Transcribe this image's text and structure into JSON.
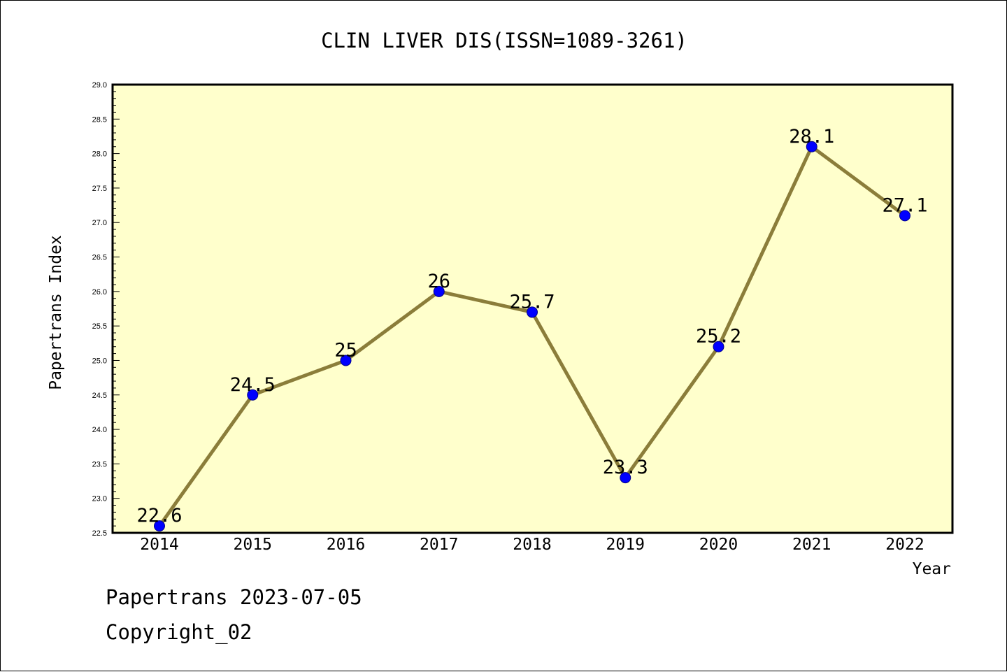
{
  "chart_data": {
    "type": "line",
    "title": "CLIN LIVER DIS(ISSN=1089-3261)",
    "xlabel": "Year",
    "ylabel": "Papertrans Index",
    "categories": [
      "2014",
      "2015",
      "2016",
      "2017",
      "2018",
      "2019",
      "2020",
      "2021",
      "2022"
    ],
    "series": [
      {
        "values": [
          22.6,
          24.5,
          25.0,
          26.0,
          25.7,
          23.3,
          25.2,
          28.1,
          27.1
        ],
        "data_labels": [
          "22.6",
          "24.5",
          "25",
          "26",
          "25.7",
          "23.3",
          "25.2",
          "28.1",
          "27.1"
        ]
      }
    ],
    "ylim": [
      22.5,
      29.0
    ],
    "yticks": [
      "22.5",
      "23.0",
      "23.5",
      "24.0",
      "24.5",
      "25.0",
      "25.5",
      "26.0",
      "26.5",
      "27.0",
      "27.5",
      "28.0",
      "28.5",
      "29.0"
    ],
    "grid": false,
    "legend": "none",
    "colors": {
      "plot_background": "#ffffcc",
      "line": "#8b7d3a",
      "marker": "#0000ff"
    }
  },
  "footer": {
    "date_text": "Papertrans 2023-07-05",
    "copyright_text": "Copyright_02"
  }
}
